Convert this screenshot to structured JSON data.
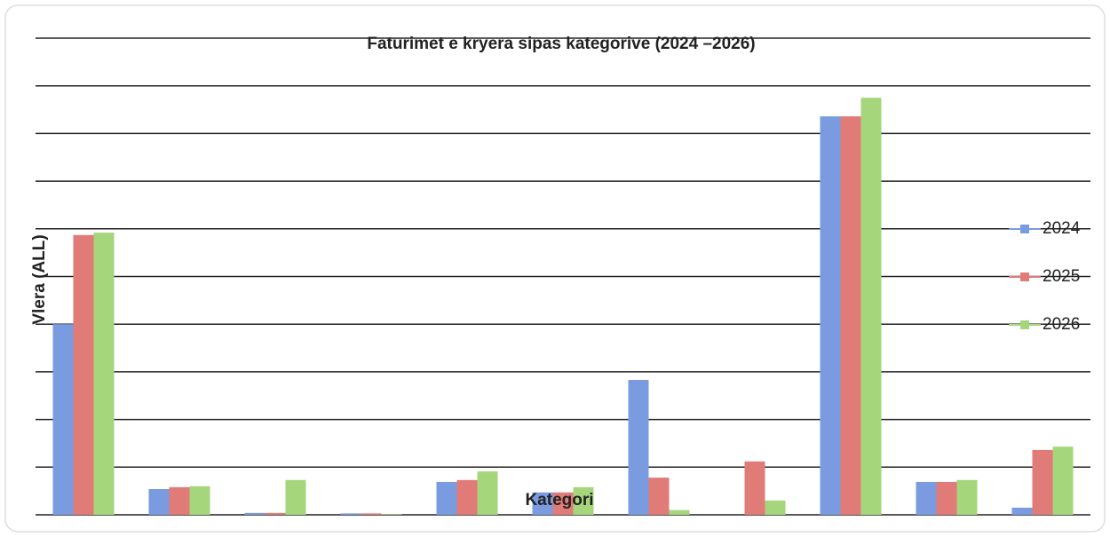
{
  "chart_data": {
    "type": "bar",
    "title": "Faturimet e kryera sipas kategorive (2024  –2026)",
    "x_label": "Kategori",
    "y_label": "Vlera (ALL)",
    "categories": [
      null,
      null,
      null,
      null,
      null,
      null,
      null,
      null,
      null,
      null,
      null
    ],
    "series": [
      {
        "name": "2024",
        "color": "#7a9be0",
        "values": [
          4.0,
          0.54,
          0.04,
          0.03,
          0.69,
          0.47,
          2.83,
          0,
          8.36,
          0.69,
          0.15
        ]
      },
      {
        "name": "2025",
        "color": "#e07b78",
        "values": [
          5.87,
          0.58,
          0.04,
          0.03,
          0.73,
          0.47,
          0.78,
          1.12,
          8.36,
          0.69,
          1.36
        ]
      },
      {
        "name": "2026",
        "color": "#a6d67c",
        "values": [
          5.92,
          0.6,
          0.73,
          0.01,
          0.91,
          0.58,
          0.1,
          0.3,
          8.75,
          0.73,
          1.43
        ]
      }
    ],
    "ylim": [
      0,
      10
    ],
    "yticks": [
      0,
      1,
      2,
      3,
      4,
      5,
      6,
      7,
      8,
      9,
      10
    ],
    "grid": true,
    "legend": "right"
  }
}
